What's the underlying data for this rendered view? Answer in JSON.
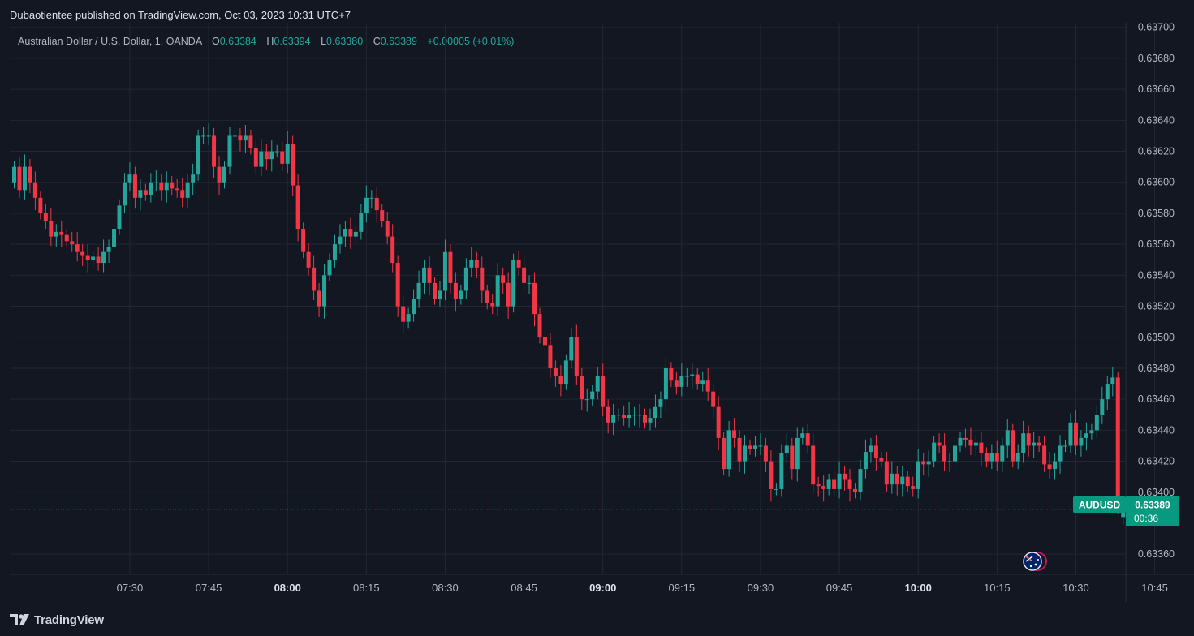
{
  "header": {
    "published": "Dubaotientee published on TradingView.com, Oct 03, 2023 10:31 UTC+7"
  },
  "legend": {
    "symbol": "Australian Dollar / U.S. Dollar, 1, OANDA",
    "open_label": "O",
    "open": "0.63384",
    "high_label": "H",
    "high": "0.63394",
    "low_label": "L",
    "low": "0.63380",
    "close_label": "C",
    "close": "0.63389",
    "change": "+0.00005 (+0.01%)"
  },
  "price_tag": {
    "symbol": "AUDUSD",
    "price": "0.63389",
    "countdown": "00:36"
  },
  "footer": {
    "brand": "TradingView"
  },
  "colors": {
    "up": "#26a69a",
    "down": "#f23645",
    "background": "#131722",
    "grid": "#232733",
    "axis_text": "#b2b5be"
  },
  "icons": {
    "flag": "australia-flag-icon",
    "logo": "tradingview-logo-icon"
  },
  "chart_data": {
    "type": "candlestick",
    "timeframe": "1 minute",
    "x_ticks": [
      {
        "label": "07:30",
        "bar": 22,
        "bold": false
      },
      {
        "label": "07:45",
        "bar": 37,
        "bold": false
      },
      {
        "label": "08:00",
        "bar": 52,
        "bold": true
      },
      {
        "label": "08:15",
        "bar": 67,
        "bold": false
      },
      {
        "label": "08:30",
        "bar": 82,
        "bold": false
      },
      {
        "label": "08:45",
        "bar": 97,
        "bold": false
      },
      {
        "label": "09:00",
        "bar": 112,
        "bold": true
      },
      {
        "label": "09:15",
        "bar": 127,
        "bold": false
      },
      {
        "label": "09:30",
        "bar": 142,
        "bold": false
      },
      {
        "label": "09:45",
        "bar": 157,
        "bold": false
      },
      {
        "label": "10:00",
        "bar": 172,
        "bold": true
      },
      {
        "label": "10:15",
        "bar": 187,
        "bold": false
      },
      {
        "label": "10:30",
        "bar": 202,
        "bold": false
      },
      {
        "label": "10:45",
        "bar": 217,
        "bold": false
      }
    ],
    "y_ticks": [
      "0.63700",
      "0.63680",
      "0.63660",
      "0.63640",
      "0.63620",
      "0.63600",
      "0.63580",
      "0.63560",
      "0.63540",
      "0.63520",
      "0.63500",
      "0.63480",
      "0.63460",
      "0.63440",
      "0.63420",
      "0.63400",
      "0.63360"
    ],
    "ylim": [
      0.63347,
      0.63703
    ],
    "current_price": 0.63389,
    "close": [
      0.6361,
      0.63595,
      0.6361,
      0.636,
      0.6359,
      0.6358,
      0.63575,
      0.63565,
      0.63568,
      0.63566,
      0.63562,
      0.6356,
      0.63555,
      0.63553,
      0.6355,
      0.63552,
      0.63548,
      0.63555,
      0.63558,
      0.6357,
      0.63585,
      0.636,
      0.63605,
      0.6359,
      0.63595,
      0.63592,
      0.636,
      0.636,
      0.63595,
      0.636,
      0.63596,
      0.63595,
      0.6359,
      0.636,
      0.63605,
      0.6363,
      0.6363,
      0.6363,
      0.6361,
      0.636,
      0.6361,
      0.6363,
      0.6363,
      0.63627,
      0.6363,
      0.63622,
      0.6361,
      0.6362,
      0.63615,
      0.6362,
      0.6362,
      0.63612,
      0.63625,
      0.63598,
      0.6357,
      0.63555,
      0.63545,
      0.6353,
      0.6352,
      0.6354,
      0.6355,
      0.6356,
      0.63565,
      0.6357,
      0.63565,
      0.63568,
      0.6358,
      0.6359,
      0.6359,
      0.63582,
      0.63575,
      0.63565,
      0.63548,
      0.6352,
      0.6351,
      0.63515,
      0.63525,
      0.63535,
      0.63545,
      0.63535,
      0.63525,
      0.6353,
      0.63555,
      0.63535,
      0.63525,
      0.6353,
      0.63545,
      0.6355,
      0.63545,
      0.6353,
      0.63522,
      0.6352,
      0.6354,
      0.63535,
      0.6352,
      0.6355,
      0.63545,
      0.63535,
      0.63535,
      0.63515,
      0.635,
      0.63495,
      0.6348,
      0.63475,
      0.6347,
      0.63485,
      0.635,
      0.63475,
      0.6346,
      0.6346,
      0.63465,
      0.63475,
      0.63455,
      0.63445,
      0.6345,
      0.6345,
      0.63448,
      0.6345,
      0.6345,
      0.6345,
      0.63445,
      0.63448,
      0.63455,
      0.6346,
      0.6348,
      0.63472,
      0.63468,
      0.63475,
      0.63475,
      0.63476,
      0.6347,
      0.63472,
      0.63465,
      0.63455,
      0.63435,
      0.63415,
      0.6344,
      0.63435,
      0.6342,
      0.6343,
      0.63428,
      0.6343,
      0.6343,
      0.6342,
      0.63402,
      0.63402,
      0.63425,
      0.6343,
      0.63415,
      0.63435,
      0.63438,
      0.6343,
      0.63405,
      0.63404,
      0.63402,
      0.63408,
      0.63402,
      0.63412,
      0.63408,
      0.63402,
      0.634,
      0.63415,
      0.63426,
      0.6343,
      0.63422,
      0.6342,
      0.63405,
      0.63412,
      0.63405,
      0.6341,
      0.63404,
      0.63402,
      0.6342,
      0.63418,
      0.6342,
      0.63432,
      0.6343,
      0.6342,
      0.6342,
      0.6343,
      0.63435,
      0.63434,
      0.6343,
      0.63432,
      0.63425,
      0.6342,
      0.63425,
      0.6342,
      0.6343,
      0.6344,
      0.6342,
      0.63425,
      0.63438,
      0.6343,
      0.63432,
      0.6343,
      0.63418,
      0.63415,
      0.6342,
      0.6343,
      0.6343,
      0.63445,
      0.6343,
      0.63435,
      0.63438,
      0.6344,
      0.6345,
      0.6346,
      0.6347,
      0.63474,
      0.6339,
      0.63389
    ],
    "open": [
      0.636,
      0.6361,
      0.63595,
      0.6361,
      0.636,
      0.6359,
      0.6358,
      0.63575,
      0.63565,
      0.63568,
      0.63566,
      0.63562,
      0.6356,
      0.63555,
      0.63553,
      0.6355,
      0.63552,
      0.63548,
      0.63555,
      0.63558,
      0.6357,
      0.63585,
      0.636,
      0.63605,
      0.6359,
      0.63595,
      0.63592,
      0.636,
      0.636,
      0.63595,
      0.636,
      0.63596,
      0.63595,
      0.6359,
      0.636,
      0.63605,
      0.6363,
      0.6363,
      0.6363,
      0.6361,
      0.636,
      0.6361,
      0.6363,
      0.6363,
      0.63627,
      0.6363,
      0.63622,
      0.6361,
      0.6362,
      0.63615,
      0.6362,
      0.6362,
      0.63612,
      0.63625,
      0.63598,
      0.6357,
      0.63555,
      0.63545,
      0.6353,
      0.6352,
      0.6354,
      0.6355,
      0.6356,
      0.63565,
      0.6357,
      0.63565,
      0.63568,
      0.6358,
      0.6359,
      0.6359,
      0.63582,
      0.63575,
      0.63565,
      0.63548,
      0.6352,
      0.6351,
      0.63515,
      0.63525,
      0.63535,
      0.63545,
      0.63535,
      0.63525,
      0.6353,
      0.63555,
      0.63535,
      0.63525,
      0.6353,
      0.63545,
      0.6355,
      0.63545,
      0.6353,
      0.63522,
      0.6352,
      0.6354,
      0.63535,
      0.6352,
      0.6355,
      0.63545,
      0.63535,
      0.63535,
      0.63515,
      0.635,
      0.63495,
      0.6348,
      0.63475,
      0.6347,
      0.63485,
      0.635,
      0.63475,
      0.6346,
      0.6346,
      0.63465,
      0.63475,
      0.63455,
      0.63445,
      0.6345,
      0.6345,
      0.63448,
      0.6345,
      0.6345,
      0.6345,
      0.63445,
      0.63448,
      0.63455,
      0.6346,
      0.6348,
      0.63472,
      0.63468,
      0.63475,
      0.63475,
      0.63476,
      0.6347,
      0.63472,
      0.63465,
      0.63455,
      0.63435,
      0.63415,
      0.6344,
      0.63435,
      0.6342,
      0.6343,
      0.63428,
      0.6343,
      0.6343,
      0.6342,
      0.63402,
      0.63402,
      0.63425,
      0.6343,
      0.63415,
      0.63435,
      0.63438,
      0.6343,
      0.63405,
      0.63404,
      0.63402,
      0.63408,
      0.63402,
      0.63412,
      0.63408,
      0.63402,
      0.634,
      0.63415,
      0.63426,
      0.6343,
      0.63422,
      0.6342,
      0.63405,
      0.63412,
      0.63405,
      0.6341,
      0.63404,
      0.63402,
      0.6342,
      0.63418,
      0.6342,
      0.63432,
      0.6343,
      0.6342,
      0.6342,
      0.6343,
      0.63435,
      0.63434,
      0.6343,
      0.63432,
      0.63425,
      0.6342,
      0.63425,
      0.6342,
      0.6343,
      0.6344,
      0.6342,
      0.63425,
      0.63438,
      0.6343,
      0.63432,
      0.6343,
      0.63418,
      0.63415,
      0.6342,
      0.6343,
      0.6343,
      0.63445,
      0.6343,
      0.63435,
      0.63438,
      0.6344,
      0.6345,
      0.6346,
      0.6347,
      0.63474,
      0.63384
    ]
  }
}
